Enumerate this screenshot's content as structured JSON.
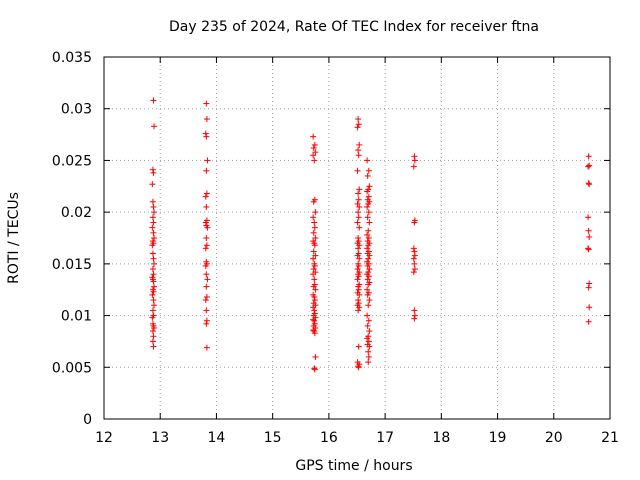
{
  "chart_data": {
    "type": "scatter",
    "title": "Day 235 of 2024, Rate Of TEC Index for receiver ftna",
    "xlabel": "GPS time / hours",
    "ylabel": "ROTI / TECUs",
    "xlim": [
      12,
      21
    ],
    "ylim": [
      0,
      0.035
    ],
    "xticks": [
      12,
      13,
      14,
      15,
      16,
      17,
      18,
      19,
      20,
      21
    ],
    "xtick_labels": [
      "12",
      "13",
      "14",
      "15",
      "16",
      "17",
      "18",
      "19",
      "20",
      "21"
    ],
    "yticks": [
      0,
      0.005,
      0.01,
      0.015,
      0.02,
      0.025,
      0.03,
      0.035
    ],
    "ytick_labels": [
      "0",
      "0.005",
      "0.01",
      "0.015",
      "0.02",
      "0.025",
      "0.03",
      "0.035"
    ],
    "grid": true,
    "marker": "+",
    "color": "#ff0000",
    "series": [
      {
        "x": [
          12.88,
          12.89,
          12.87,
          12.88,
          12.86,
          12.87,
          12.88,
          12.89,
          12.87,
          12.88,
          12.86,
          12.88,
          12.89,
          12.87,
          12.88,
          12.86,
          12.87,
          12.88,
          12.89,
          12.87,
          12.88,
          12.86,
          12.87,
          12.88,
          12.89,
          12.87,
          12.88,
          12.86,
          12.88,
          12.89,
          12.87,
          12.88,
          12.86,
          12.87,
          12.88,
          12.89,
          12.87,
          12.88,
          12.87,
          12.88
        ],
        "y": [
          0.0308,
          0.0283,
          0.0241,
          0.0238,
          0.0227,
          0.021,
          0.0205,
          0.02,
          0.0195,
          0.019,
          0.0185,
          0.018,
          0.0175,
          0.0172,
          0.017,
          0.0168,
          0.016,
          0.0155,
          0.015,
          0.0145,
          0.014,
          0.0137,
          0.0135,
          0.0133,
          0.0128,
          0.0125,
          0.0123,
          0.012,
          0.0115,
          0.011,
          0.0105,
          0.01,
          0.0098,
          0.0092,
          0.009,
          0.0088,
          0.0085,
          0.008,
          0.0075,
          0.007
        ]
      },
      {
        "x": [
          13.82,
          13.83,
          13.81,
          13.82,
          13.84,
          13.82,
          13.83,
          13.81,
          13.82,
          13.83,
          13.81,
          13.82,
          13.84,
          13.82,
          13.83,
          13.81,
          13.82,
          13.83,
          13.81,
          13.82,
          13.84,
          13.82,
          13.83,
          13.81,
          13.82,
          13.83,
          13.82,
          13.83
        ],
        "y": [
          0.0305,
          0.029,
          0.0276,
          0.0273,
          0.025,
          0.024,
          0.0218,
          0.0215,
          0.0205,
          0.0192,
          0.019,
          0.0187,
          0.0185,
          0.0175,
          0.0168,
          0.0165,
          0.0152,
          0.015,
          0.0148,
          0.014,
          0.0135,
          0.0128,
          0.0118,
          0.0115,
          0.0105,
          0.0095,
          0.0092,
          0.0069
        ]
      },
      {
        "x": [
          15.72,
          15.75,
          15.73,
          15.76,
          15.72,
          15.74,
          15.75,
          15.73,
          15.76,
          15.72,
          15.74,
          15.75,
          15.73,
          15.76,
          15.72,
          15.74,
          15.75,
          15.73,
          15.76,
          15.72,
          15.74,
          15.75,
          15.73,
          15.76,
          15.72,
          15.74,
          15.75,
          15.73,
          15.76,
          15.72,
          15.74,
          15.75,
          15.73,
          15.76,
          15.72,
          15.74,
          15.75,
          15.73,
          15.76,
          15.72,
          15.74,
          15.75,
          15.73,
          15.76,
          15.72,
          15.74,
          15.75,
          15.76,
          15.74,
          15.75
        ],
        "y": [
          0.0273,
          0.0265,
          0.0262,
          0.0258,
          0.0255,
          0.025,
          0.0212,
          0.021,
          0.02,
          0.0195,
          0.019,
          0.0185,
          0.018,
          0.0175,
          0.0172,
          0.017,
          0.0168,
          0.0162,
          0.0158,
          0.0155,
          0.015,
          0.0148,
          0.0145,
          0.0142,
          0.014,
          0.0135,
          0.013,
          0.0128,
          0.0125,
          0.012,
          0.0118,
          0.0115,
          0.0112,
          0.011,
          0.0108,
          0.0105,
          0.0102,
          0.01,
          0.0098,
          0.0096,
          0.0095,
          0.0092,
          0.009,
          0.0088,
          0.0086,
          0.0085,
          0.0083,
          0.006,
          0.0049,
          0.0048
        ]
      },
      {
        "x": [
          16.52,
          16.53,
          16.51,
          16.54,
          16.52,
          16.53,
          16.51,
          16.54,
          16.52,
          16.53,
          16.51,
          16.54,
          16.52,
          16.53,
          16.51,
          16.54,
          16.52,
          16.53,
          16.51,
          16.54,
          16.52,
          16.53,
          16.51,
          16.54,
          16.52,
          16.53,
          16.51,
          16.54,
          16.52,
          16.53,
          16.51,
          16.54,
          16.52,
          16.53,
          16.51,
          16.54,
          16.52,
          16.53,
          16.51,
          16.54,
          16.52,
          16.53,
          16.51,
          16.54,
          16.52,
          16.53
        ],
        "y": [
          0.029,
          0.0285,
          0.0282,
          0.0265,
          0.026,
          0.0255,
          0.024,
          0.0222,
          0.0218,
          0.0212,
          0.0208,
          0.0205,
          0.02,
          0.0195,
          0.019,
          0.0185,
          0.0175,
          0.0172,
          0.017,
          0.0168,
          0.0165,
          0.016,
          0.0158,
          0.0155,
          0.015,
          0.0148,
          0.0145,
          0.0142,
          0.014,
          0.0138,
          0.0135,
          0.013,
          0.0128,
          0.0125,
          0.0122,
          0.012,
          0.0115,
          0.0112,
          0.011,
          0.0108,
          0.0105,
          0.007,
          0.0055,
          0.0053,
          0.0051,
          0.005
        ]
      },
      {
        "x": [
          16.68,
          16.71,
          16.69,
          16.72,
          16.7,
          16.68,
          16.71,
          16.69,
          16.72,
          16.7,
          16.68,
          16.71,
          16.69,
          16.72,
          16.7,
          16.68,
          16.71,
          16.69,
          16.72,
          16.7,
          16.68,
          16.71,
          16.69,
          16.72,
          16.7,
          16.68,
          16.71,
          16.69,
          16.72,
          16.7,
          16.68,
          16.71,
          16.69,
          16.72,
          16.7,
          16.68,
          16.71,
          16.69,
          16.72,
          16.7,
          16.68,
          16.71,
          16.69,
          16.72,
          16.7,
          16.68,
          16.71,
          16.69,
          16.72,
          16.7,
          16.71,
          16.7
        ],
        "y": [
          0.025,
          0.024,
          0.0235,
          0.0225,
          0.0222,
          0.022,
          0.0215,
          0.0212,
          0.021,
          0.0208,
          0.0205,
          0.02,
          0.0195,
          0.019,
          0.0182,
          0.0178,
          0.0175,
          0.0172,
          0.017,
          0.0168,
          0.0165,
          0.0162,
          0.016,
          0.0158,
          0.0155,
          0.0152,
          0.015,
          0.0148,
          0.0145,
          0.0142,
          0.014,
          0.0138,
          0.0135,
          0.0132,
          0.013,
          0.0125,
          0.0122,
          0.012,
          0.0115,
          0.011,
          0.01,
          0.0095,
          0.009,
          0.0085,
          0.008,
          0.0078,
          0.0075,
          0.0072,
          0.007,
          0.0065,
          0.006,
          0.0055
        ]
      },
      {
        "x": [
          17.52,
          17.53,
          17.51,
          17.53,
          17.52,
          17.51,
          17.52,
          17.53,
          17.51,
          17.52,
          17.53,
          17.51,
          17.52,
          17.53,
          17.52
        ],
        "y": [
          0.0254,
          0.025,
          0.0244,
          0.0192,
          0.019,
          0.0165,
          0.0162,
          0.0158,
          0.0155,
          0.015,
          0.0145,
          0.0142,
          0.0105,
          0.01,
          0.0097
        ]
      },
      {
        "x": [
          20.62,
          20.63,
          20.61,
          20.62,
          20.63,
          20.61,
          20.62,
          20.63,
          20.61,
          20.62,
          20.63,
          20.62,
          20.63,
          20.62
        ],
        "y": [
          0.0254,
          0.0245,
          0.0244,
          0.0228,
          0.0227,
          0.0195,
          0.0182,
          0.0176,
          0.0165,
          0.0164,
          0.0131,
          0.0127,
          0.0108,
          0.0094
        ]
      }
    ]
  }
}
